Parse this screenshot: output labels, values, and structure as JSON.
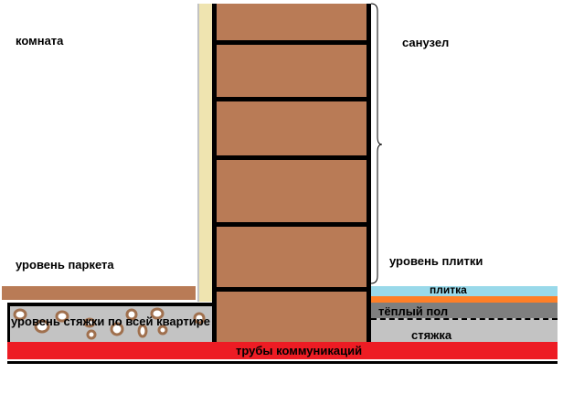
{
  "labels": {
    "room": "комната",
    "bathroom": "санузел",
    "parquet_level": "уровень паркета",
    "tile_level": "уровень плитки",
    "screed_level": "уровень стяжки по всей квартире",
    "tile": "плитка",
    "heated_floor": "тёплый пол",
    "screed": "стяжка",
    "pipes": "трубы коммуникаций"
  },
  "colors": {
    "brick": "#b97b56",
    "plaster": "#efe4b0",
    "parquet": "#b97b56",
    "screed": "#c3c3c3",
    "pipes": "#ed1c24",
    "tile": "#99d9ea",
    "adhesive": "#ff7f27",
    "heated_floor": "#7f7f7f"
  }
}
